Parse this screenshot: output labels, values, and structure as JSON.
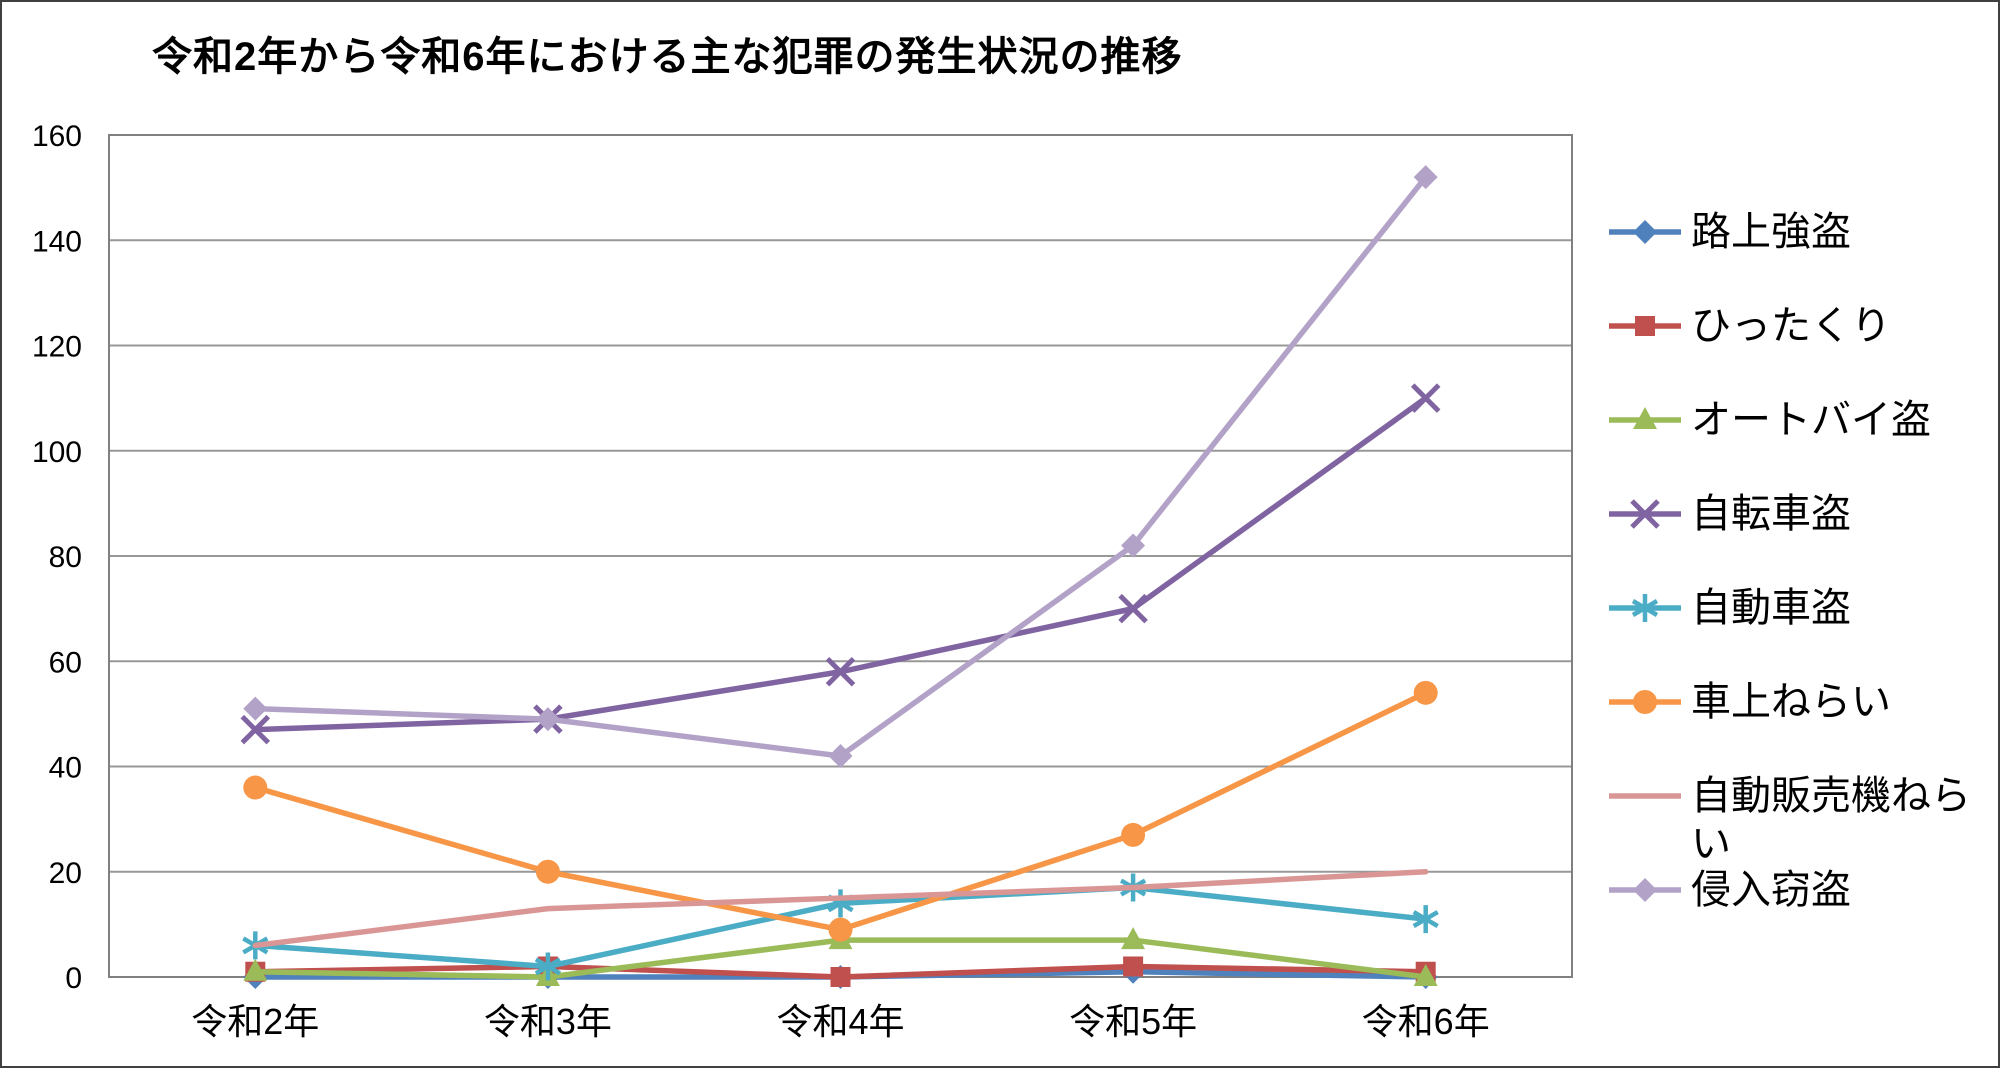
{
  "chart_data": {
    "type": "line",
    "title": "令和2年から令和6年における主な犯罪の発生状況の推移",
    "categories": [
      "令和2年",
      "令和3年",
      "令和4年",
      "令和5年",
      "令和6年"
    ],
    "series": [
      {
        "name": "路上強盗",
        "color": "#4F81BD",
        "marker": "diamond",
        "values": [
          0,
          0,
          0,
          1,
          0
        ]
      },
      {
        "name": "ひったくり",
        "color": "#C0504D",
        "marker": "square",
        "values": [
          1,
          2,
          0,
          2,
          1
        ]
      },
      {
        "name": "オートバイ盗",
        "color": "#9BBB59",
        "marker": "triangle",
        "values": [
          1,
          0,
          7,
          7,
          0
        ]
      },
      {
        "name": "自転車盗",
        "color": "#8064A2",
        "marker": "x",
        "values": [
          47,
          49,
          58,
          70,
          110
        ]
      },
      {
        "name": "自動車盗",
        "color": "#4BACC6",
        "marker": "asterisk",
        "values": [
          6,
          2,
          14,
          17,
          11
        ]
      },
      {
        "name": "車上ねらい",
        "color": "#F79646",
        "marker": "circle",
        "values": [
          36,
          20,
          9,
          27,
          54
        ]
      },
      {
        "name": "自動販売機ねらい",
        "color": "#D99694",
        "marker": "none",
        "values": [
          6,
          13,
          15,
          17,
          20
        ]
      },
      {
        "name": "侵入窃盗",
        "color": "#B3A2C7",
        "marker": "diamond",
        "values": [
          51,
          49,
          42,
          82,
          152
        ]
      }
    ],
    "ylim": [
      0,
      160
    ],
    "ytick_step": 20,
    "yticks": [
      0,
      20,
      40,
      60,
      80,
      100,
      120,
      140,
      160
    ],
    "xlabel": "",
    "ylabel": "",
    "grid": "horizontal",
    "legend_position": "right",
    "grid_color": "#989898",
    "frame_color": "#808080",
    "background": "#FFFFFF"
  }
}
